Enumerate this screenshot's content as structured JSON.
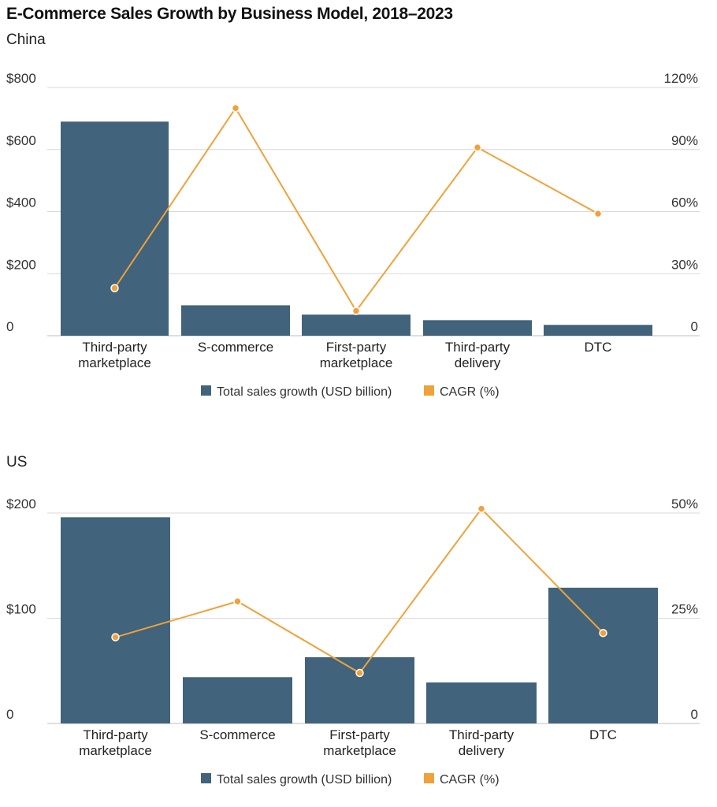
{
  "title": "E-Commerce Sales Growth by Business Model, 2018–2023",
  "colors": {
    "bar": "#41637b",
    "line": "#f0a23a",
    "grid": "#d9d9d9"
  },
  "chart_data": [
    {
      "type": "bar",
      "subtitle": "China",
      "categories": [
        [
          "Third-party",
          "marketplace"
        ],
        [
          "S-commerce"
        ],
        [
          "First-party",
          "marketplace"
        ],
        [
          "Third-party",
          "delivery"
        ],
        [
          "DTC"
        ]
      ],
      "series": [
        {
          "name": "Total sales growth (USD billion)",
          "type": "bar",
          "axis": "left",
          "values": [
            690,
            98,
            68,
            50,
            35
          ]
        },
        {
          "name": "CAGR (%)",
          "type": "line",
          "axis": "right",
          "values": [
            23,
            110,
            12,
            91,
            59
          ]
        }
      ],
      "left_axis": {
        "ylim": [
          0,
          800
        ],
        "ticks": [
          0,
          200,
          400,
          600,
          800
        ],
        "tick_labels": [
          "0",
          "$200",
          "$400",
          "$600",
          "$800"
        ]
      },
      "right_axis": {
        "ylim": [
          0,
          120
        ],
        "ticks": [
          0,
          30,
          60,
          90,
          120
        ],
        "tick_labels": [
          "0",
          "30%",
          "60%",
          "90%",
          "120%"
        ]
      },
      "legend": [
        "Total sales growth (USD billion)",
        "CAGR (%)"
      ]
    },
    {
      "type": "bar",
      "subtitle": "US",
      "categories": [
        [
          "Third-party",
          "marketplace"
        ],
        [
          "S-commerce"
        ],
        [
          "First-party",
          "marketplace"
        ],
        [
          "Third-party",
          "delivery"
        ],
        [
          "DTC"
        ]
      ],
      "series": [
        {
          "name": "Total sales growth (USD billion)",
          "type": "bar",
          "axis": "left",
          "values": [
            196,
            44,
            63,
            39,
            129
          ]
        },
        {
          "name": "CAGR (%)",
          "type": "line",
          "axis": "right",
          "values": [
            20.5,
            29,
            12,
            51,
            21.5
          ]
        }
      ],
      "left_axis": {
        "ylim": [
          0,
          200
        ],
        "ticks": [
          0,
          100,
          200
        ],
        "tick_labels": [
          "0",
          "$100",
          "$200"
        ]
      },
      "right_axis": {
        "ylim": [
          0,
          50
        ],
        "ticks": [
          0,
          25,
          50
        ],
        "tick_labels": [
          "0",
          "25%",
          "50%"
        ]
      },
      "legend": [
        "Total sales growth (USD billion)",
        "CAGR (%)"
      ]
    }
  ]
}
